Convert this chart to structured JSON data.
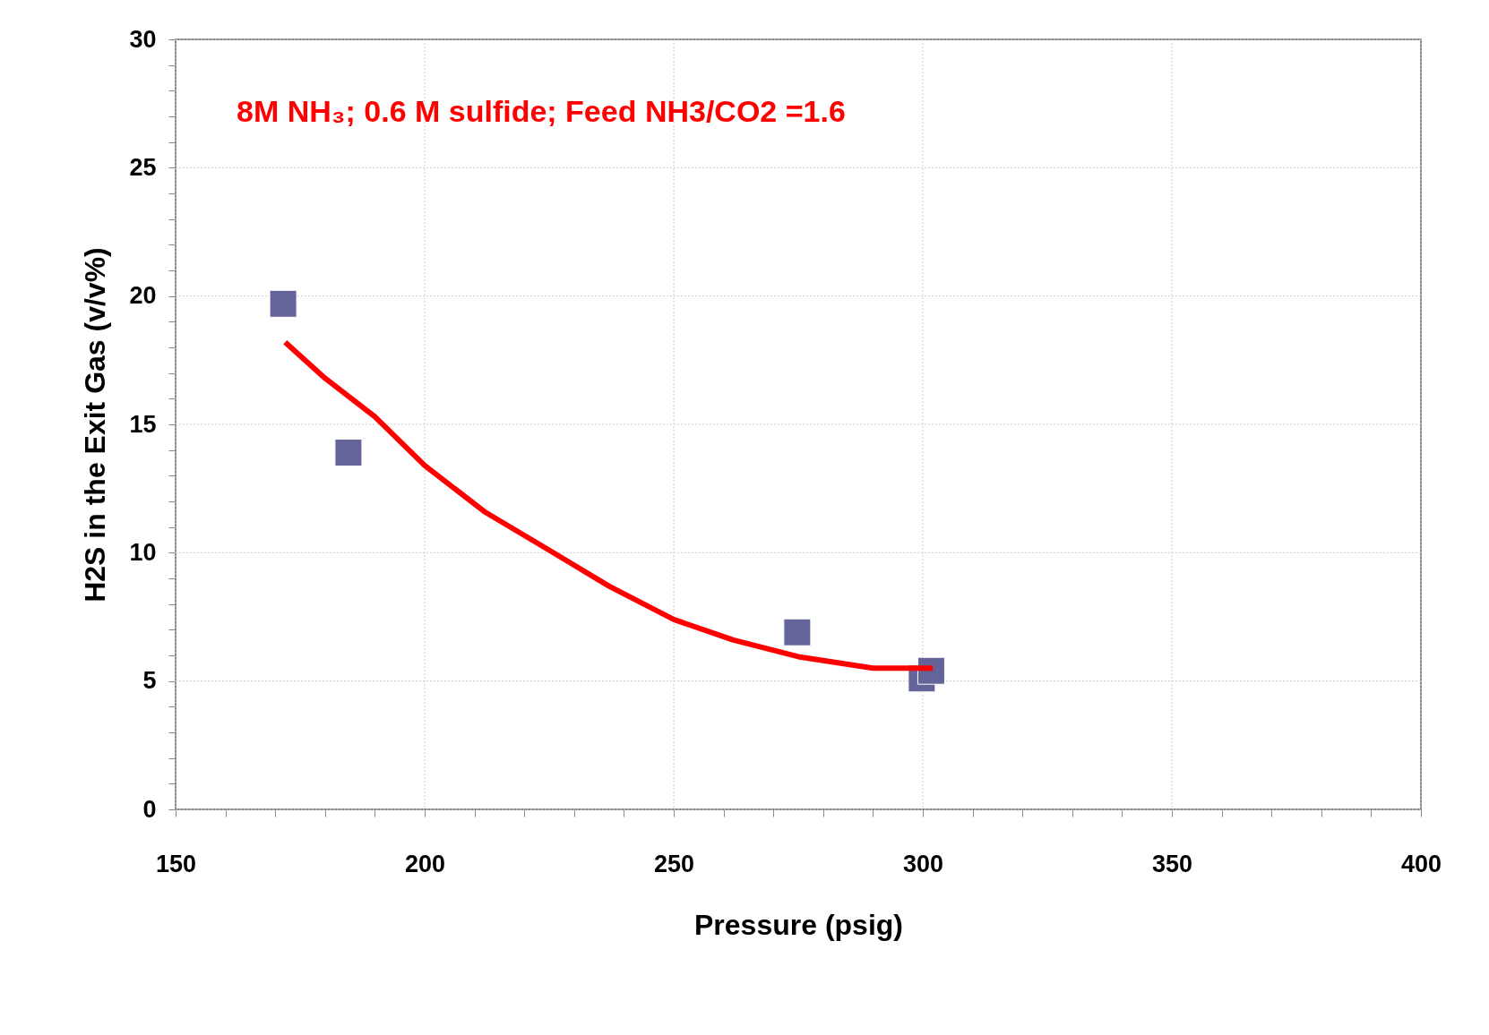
{
  "chart_data": {
    "type": "scatter",
    "xlabel": "Pressure (psig)",
    "ylabel": "H2S in the Exit Gas (v/v%)",
    "annotations": [
      "8M NH₃; 0.6 M sulfide; Feed NH3/CO2 =1.6"
    ],
    "xlim": [
      150,
      400
    ],
    "ylim": [
      0,
      30
    ],
    "xticks": [
      150,
      {
        "value": 160,
        "label": null
      },
      {
        "value": 170,
        "label": null
      },
      {
        "value": 180,
        "label": null
      },
      {
        "value": 190,
        "label": null
      },
      200,
      {
        "value": 210,
        "label": null
      },
      {
        "value": 220,
        "label": null
      },
      {
        "value": 230,
        "label": null
      },
      {
        "value": 240,
        "label": null
      },
      250,
      {
        "value": 260,
        "label": null
      },
      {
        "value": 270,
        "label": null
      },
      {
        "value": 280,
        "label": null
      },
      {
        "value": 290,
        "label": null
      },
      300,
      {
        "value": 310,
        "label": null
      },
      {
        "value": 320,
        "label": null
      },
      {
        "value": 330,
        "label": null
      },
      {
        "value": 340,
        "label": null
      },
      350,
      {
        "value": 360,
        "label": null
      },
      {
        "value": 370,
        "label": null
      },
      {
        "value": 380,
        "label": null
      },
      {
        "value": 390,
        "label": null
      },
      400
    ],
    "yticks": [
      0,
      {
        "value": 1,
        "label": null
      },
      {
        "value": 2,
        "label": null
      },
      {
        "value": 3,
        "label": null
      },
      {
        "value": 4,
        "label": null
      },
      5,
      {
        "value": 6,
        "label": null
      },
      {
        "value": 7,
        "label": null
      },
      {
        "value": 8,
        "label": null
      },
      {
        "value": 9,
        "label": null
      },
      10,
      {
        "value": 11,
        "label": null
      },
      {
        "value": 12,
        "label": null
      },
      {
        "value": 13,
        "label": null
      },
      {
        "value": 14,
        "label": null
      },
      15,
      {
        "value": 16,
        "label": null
      },
      {
        "value": 17,
        "label": null
      },
      {
        "value": 18,
        "label": null
      },
      {
        "value": 19,
        "label": null
      },
      20,
      {
        "value": 21,
        "label": null
      },
      {
        "value": 22,
        "label": null
      },
      {
        "value": 23,
        "label": null
      },
      {
        "value": 24,
        "label": null
      },
      25,
      {
        "value": 26,
        "label": null
      },
      {
        "value": 27,
        "label": null
      },
      {
        "value": 28,
        "label": null
      },
      {
        "value": 29,
        "label": null
      },
      30
    ],
    "grid": true,
    "series": [
      {
        "marker": "square",
        "color": "#64649a",
        "x": [
          171.6,
          184.7,
          274.8,
          299.8,
          301.7
        ],
        "values": [
          19.7,
          13.9,
          6.9,
          5.1,
          5.4
        ]
      },
      {
        "type": "line",
        "line_style": "solid",
        "color": "#ff0000",
        "x": [
          172,
          180,
          190,
          200,
          212,
          225,
          237,
          250,
          262,
          275,
          290,
          302
        ],
        "values": [
          18.2,
          16.8,
          15.3,
          13.4,
          11.6,
          10.1,
          8.7,
          7.4,
          6.6,
          5.95,
          5.5,
          5.5
        ]
      }
    ]
  }
}
